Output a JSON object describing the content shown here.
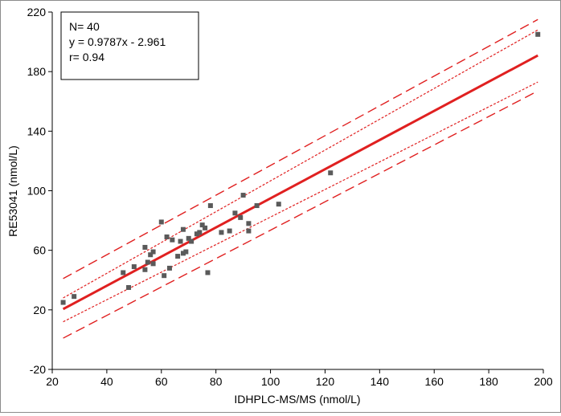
{
  "chart_data": {
    "type": "scatter",
    "xlabel": "IDHPLC-MS/MS (nmol/L)",
    "ylabel": "RE53041 (nmol/L)",
    "xlim": [
      20,
      200
    ],
    "ylim": [
      -20,
      220
    ],
    "xticks": [
      20,
      40,
      60,
      80,
      100,
      120,
      140,
      160,
      180,
      200
    ],
    "yticks": [
      -20,
      20,
      60,
      100,
      140,
      180,
      220
    ],
    "grid": false,
    "legend": "none",
    "annotation": {
      "n": "N= 40",
      "equation": "y = 0.9787x - 2.961",
      "r": "r= 0.94"
    },
    "regression": {
      "slope": 0.9787,
      "intercept": -2.961,
      "x_range": [
        24,
        198
      ]
    },
    "confidence_band": {
      "lower_x": [
        24,
        198
      ],
      "lower_y": [
        12,
        173
      ],
      "upper_x": [
        24,
        198
      ],
      "upper_y": [
        28,
        208
      ]
    },
    "prediction_band": {
      "lower_x": [
        24,
        198
      ],
      "lower_y": [
        1,
        167
      ],
      "upper_x": [
        24,
        198
      ],
      "upper_y": [
        41,
        215
      ]
    },
    "points": [
      {
        "x": 24,
        "y": 25
      },
      {
        "x": 28,
        "y": 29
      },
      {
        "x": 46,
        "y": 45
      },
      {
        "x": 48,
        "y": 35
      },
      {
        "x": 50,
        "y": 49
      },
      {
        "x": 54,
        "y": 62
      },
      {
        "x": 54,
        "y": 47
      },
      {
        "x": 55,
        "y": 52
      },
      {
        "x": 56,
        "y": 57
      },
      {
        "x": 57,
        "y": 51
      },
      {
        "x": 57,
        "y": 59
      },
      {
        "x": 60,
        "y": 79
      },
      {
        "x": 61,
        "y": 43
      },
      {
        "x": 62,
        "y": 69
      },
      {
        "x": 63,
        "y": 48
      },
      {
        "x": 64,
        "y": 67
      },
      {
        "x": 66,
        "y": 56
      },
      {
        "x": 67,
        "y": 66
      },
      {
        "x": 68,
        "y": 74
      },
      {
        "x": 68,
        "y": 58
      },
      {
        "x": 69,
        "y": 59
      },
      {
        "x": 70,
        "y": 68
      },
      {
        "x": 71,
        "y": 66
      },
      {
        "x": 73,
        "y": 71
      },
      {
        "x": 74,
        "y": 72
      },
      {
        "x": 75,
        "y": 77
      },
      {
        "x": 76,
        "y": 75
      },
      {
        "x": 77,
        "y": 45
      },
      {
        "x": 78,
        "y": 90
      },
      {
        "x": 82,
        "y": 72
      },
      {
        "x": 85,
        "y": 73
      },
      {
        "x": 87,
        "y": 85
      },
      {
        "x": 89,
        "y": 82
      },
      {
        "x": 90,
        "y": 97
      },
      {
        "x": 92,
        "y": 73
      },
      {
        "x": 92,
        "y": 78
      },
      {
        "x": 95,
        "y": 90
      },
      {
        "x": 103,
        "y": 91
      },
      {
        "x": 122,
        "y": 112
      },
      {
        "x": 198,
        "y": 205
      }
    ]
  }
}
